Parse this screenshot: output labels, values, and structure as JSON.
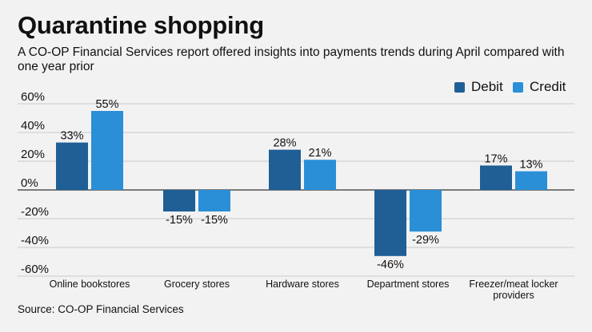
{
  "title": "Quarantine shopping",
  "subtitle": "A CO-OP Financial Services report offered insights into payments trends during April compared with one year prior",
  "source": "Source: CO-OP Financial Services",
  "colors": {
    "debit": "#1f5f96",
    "credit": "#2a8fd6",
    "grid": "#bbbbbb",
    "axis": "#333333"
  },
  "chart_data": {
    "type": "bar",
    "categories": [
      "Online bookstores",
      "Grocery stores",
      "Hardware stores",
      "Department stores",
      "Freezer/meat locker providers"
    ],
    "category_lines": [
      [
        "Online bookstores"
      ],
      [
        "Grocery stores"
      ],
      [
        "Hardware stores"
      ],
      [
        "Department stores"
      ],
      [
        "Freezer/meat locker",
        "providers"
      ]
    ],
    "series": [
      {
        "name": "Debit",
        "values": [
          33,
          -15,
          28,
          -46,
          17
        ],
        "labels": [
          "33%",
          "-15%",
          "28%",
          "-46%",
          "17%"
        ]
      },
      {
        "name": "Credit",
        "values": [
          55,
          -15,
          21,
          -29,
          13
        ],
        "labels": [
          "55%",
          "-15%",
          "21%",
          "-29%",
          "13%"
        ]
      }
    ],
    "yticks": [
      60,
      40,
      20,
      0,
      -20,
      -40,
      -60
    ],
    "ytick_labels": [
      "60%",
      "40%",
      "20%",
      "0%",
      "-20%",
      "-40%",
      "-60%"
    ],
    "ylim": [
      -60,
      60
    ],
    "legend": "top-right"
  }
}
